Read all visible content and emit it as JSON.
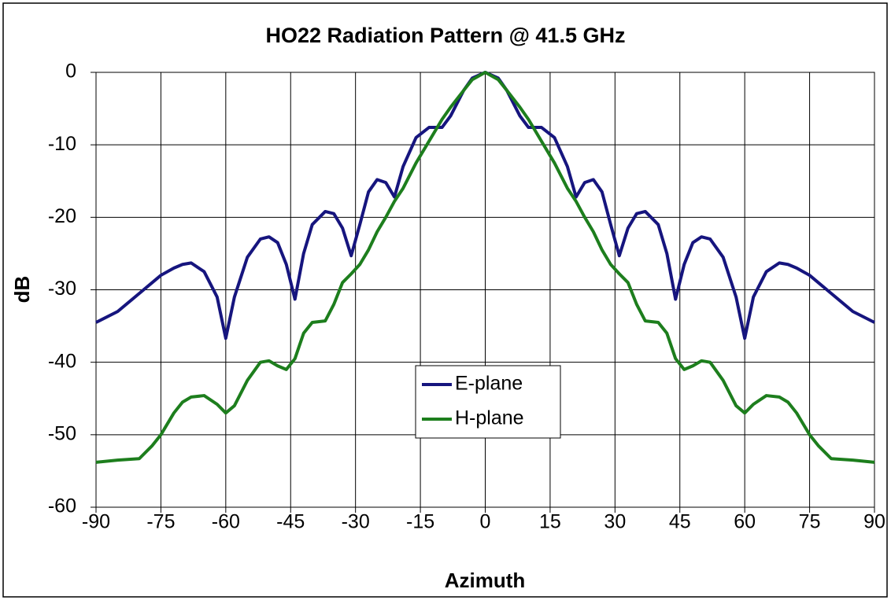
{
  "chart_data": {
    "type": "line",
    "title": "HO22 Radiation Pattern @ 41.5 GHz",
    "x_label": "Azimuth",
    "y_label": "dB",
    "x": [
      -90,
      -85,
      -80,
      -77,
      -75,
      -72,
      -70,
      -68,
      -65,
      -62,
      -60,
      -58,
      -55,
      -52,
      -50,
      -48,
      -46,
      -44,
      -42,
      -40,
      -37,
      -35,
      -33,
      -31,
      -29,
      -27,
      -25,
      -23,
      -21,
      -19,
      -16,
      -13,
      -10,
      -8,
      -5,
      -3,
      0,
      3,
      5,
      8,
      10,
      13,
      16,
      19,
      21,
      23,
      25,
      27,
      29,
      31,
      33,
      35,
      37,
      40,
      42,
      44,
      46,
      48,
      50,
      52,
      55,
      58,
      60,
      62,
      65,
      68,
      70,
      72,
      75,
      77,
      80,
      85,
      90
    ],
    "series": [
      {
        "name": "E-plane",
        "color": "#16157e",
        "values": [
          -34.5,
          -33,
          -30.5,
          -29,
          -28,
          -27,
          -26.5,
          -26.3,
          -27.5,
          -31,
          -36.7,
          -31,
          -25.5,
          -23,
          -22.7,
          -23.5,
          -26.5,
          -31.3,
          -25,
          -21,
          -19.2,
          -19.5,
          -21.5,
          -25.3,
          -21,
          -16.5,
          -14.8,
          -15.2,
          -17.2,
          -13,
          -9,
          -7.6,
          -7.6,
          -6,
          -2.5,
          -0.8,
          0,
          -0.8,
          -2.5,
          -6,
          -7.6,
          -7.6,
          -9,
          -13,
          -17.2,
          -15.2,
          -14.8,
          -16.5,
          -21,
          -25.3,
          -21.5,
          -19.5,
          -19.2,
          -21,
          -25,
          -31.3,
          -26.5,
          -23.5,
          -22.7,
          -23,
          -25.5,
          -31,
          -36.7,
          -31,
          -27.5,
          -26.3,
          -26.5,
          -27,
          -28,
          -29,
          -30.5,
          -33,
          -34.5
        ]
      },
      {
        "name": "H-plane",
        "color": "#1d7e1d",
        "values": [
          -53.8,
          -53.5,
          -53.3,
          -51.5,
          -50,
          -47,
          -45.5,
          -44.8,
          -44.6,
          -45.8,
          -47,
          -46,
          -42.5,
          -40,
          -39.8,
          -40.5,
          -41,
          -39.5,
          -36,
          -34.5,
          -34.3,
          -32,
          -29,
          -27.8,
          -26.5,
          -24.5,
          -22,
          -20,
          -17.8,
          -16,
          -12.5,
          -9.5,
          -6.5,
          -4.8,
          -2.5,
          -1,
          0,
          -1,
          -2.5,
          -4.8,
          -6.5,
          -9.5,
          -12.5,
          -16,
          -17.8,
          -20,
          -22,
          -24.5,
          -26.5,
          -27.8,
          -29,
          -32,
          -34.3,
          -34.5,
          -36,
          -39.5,
          -41,
          -40.5,
          -39.8,
          -40,
          -42.5,
          -46,
          -47,
          -45.8,
          -44.6,
          -44.8,
          -45.5,
          -47,
          -50,
          -51.5,
          -53.3,
          -53.5,
          -53.8
        ]
      }
    ],
    "xlim": [
      -90,
      90
    ],
    "xticks": [
      -90,
      -75,
      -60,
      -45,
      -30,
      -15,
      0,
      15,
      30,
      45,
      60,
      75,
      90
    ],
    "ylim": [
      -60,
      0
    ],
    "yticks": [
      -60,
      -50,
      -40,
      -30,
      -20,
      -10,
      0
    ],
    "grid": true,
    "legend": "center"
  }
}
